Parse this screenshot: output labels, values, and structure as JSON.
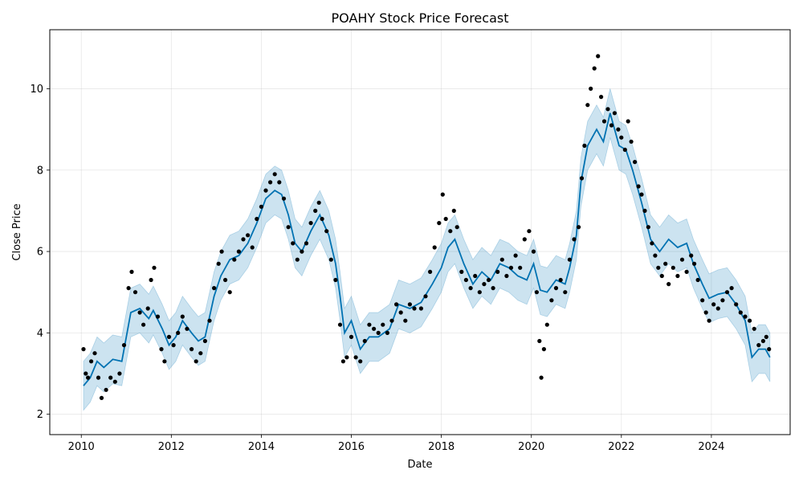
{
  "chart_data": {
    "type": "line",
    "title": "POAHY Stock Price Forecast",
    "xlabel": "Date",
    "ylabel": "Close Price",
    "x_range": [
      2009.3,
      2025.75
    ],
    "ylim": [
      1.5,
      11.45
    ],
    "x_ticks": [
      "2010",
      "2012",
      "2014",
      "2016",
      "2018",
      "2020",
      "2022",
      "2024"
    ],
    "y_ticks": [
      "2",
      "4",
      "6",
      "8",
      "10"
    ],
    "grid": true,
    "colors": {
      "forecast_line": "#0072B2",
      "uncertainty_band": "#0072B2",
      "observed_points": "#000000"
    },
    "series": [
      {
        "kind": "forecast",
        "points": [
          [
            2010.05,
            2.7
          ],
          [
            2010.2,
            2.9
          ],
          [
            2010.35,
            3.3
          ],
          [
            2010.5,
            3.15
          ],
          [
            2010.7,
            3.35
          ],
          [
            2010.9,
            3.3
          ],
          [
            2011.0,
            3.9
          ],
          [
            2011.1,
            4.5
          ],
          [
            2011.3,
            4.6
          ],
          [
            2011.5,
            4.35
          ],
          [
            2011.6,
            4.55
          ],
          [
            2011.8,
            4.1
          ],
          [
            2011.95,
            3.7
          ],
          [
            2012.1,
            3.9
          ],
          [
            2012.25,
            4.3
          ],
          [
            2012.45,
            4.0
          ],
          [
            2012.6,
            3.8
          ],
          [
            2012.75,
            3.9
          ],
          [
            2012.95,
            4.9
          ],
          [
            2013.1,
            5.4
          ],
          [
            2013.3,
            5.8
          ],
          [
            2013.5,
            5.9
          ],
          [
            2013.7,
            6.2
          ],
          [
            2013.9,
            6.7
          ],
          [
            2014.1,
            7.3
          ],
          [
            2014.3,
            7.5
          ],
          [
            2014.45,
            7.4
          ],
          [
            2014.6,
            6.9
          ],
          [
            2014.75,
            6.2
          ],
          [
            2014.9,
            6.0
          ],
          [
            2015.1,
            6.5
          ],
          [
            2015.3,
            6.9
          ],
          [
            2015.5,
            6.4
          ],
          [
            2015.65,
            5.7
          ],
          [
            2015.75,
            4.9
          ],
          [
            2015.85,
            4.0
          ],
          [
            2016.0,
            4.3
          ],
          [
            2016.2,
            3.6
          ],
          [
            2016.4,
            3.9
          ],
          [
            2016.6,
            3.9
          ],
          [
            2016.85,
            4.1
          ],
          [
            2017.05,
            4.7
          ],
          [
            2017.3,
            4.6
          ],
          [
            2017.55,
            4.75
          ],
          [
            2017.8,
            5.2
          ],
          [
            2018.0,
            5.6
          ],
          [
            2018.15,
            6.1
          ],
          [
            2018.3,
            6.3
          ],
          [
            2018.5,
            5.7
          ],
          [
            2018.7,
            5.2
          ],
          [
            2018.9,
            5.5
          ],
          [
            2019.1,
            5.3
          ],
          [
            2019.3,
            5.7
          ],
          [
            2019.5,
            5.6
          ],
          [
            2019.7,
            5.4
          ],
          [
            2019.9,
            5.3
          ],
          [
            2020.05,
            5.7
          ],
          [
            2020.2,
            5.05
          ],
          [
            2020.35,
            5.0
          ],
          [
            2020.55,
            5.3
          ],
          [
            2020.75,
            5.2
          ],
          [
            2020.85,
            5.6
          ],
          [
            2021.0,
            6.4
          ],
          [
            2021.1,
            7.7
          ],
          [
            2021.25,
            8.6
          ],
          [
            2021.45,
            9.0
          ],
          [
            2021.6,
            8.7
          ],
          [
            2021.75,
            9.4
          ],
          [
            2021.95,
            8.6
          ],
          [
            2022.1,
            8.5
          ],
          [
            2022.25,
            8.0
          ],
          [
            2022.45,
            7.2
          ],
          [
            2022.65,
            6.3
          ],
          [
            2022.85,
            6.0
          ],
          [
            2023.05,
            6.3
          ],
          [
            2023.25,
            6.1
          ],
          [
            2023.45,
            6.2
          ],
          [
            2023.6,
            5.7
          ],
          [
            2023.8,
            5.2
          ],
          [
            2023.95,
            4.85
          ],
          [
            2024.15,
            4.95
          ],
          [
            2024.35,
            5.0
          ],
          [
            2024.55,
            4.7
          ],
          [
            2024.75,
            4.3
          ],
          [
            2024.9,
            3.4
          ],
          [
            2025.05,
            3.6
          ],
          [
            2025.2,
            3.6
          ],
          [
            2025.3,
            3.4
          ]
        ],
        "band_half_width": 0.6
      },
      {
        "kind": "observed",
        "points": [
          [
            2010.05,
            3.6
          ],
          [
            2010.1,
            3.0
          ],
          [
            2010.15,
            2.9
          ],
          [
            2010.22,
            3.3
          ],
          [
            2010.3,
            3.5
          ],
          [
            2010.38,
            2.9
          ],
          [
            2010.45,
            2.4
          ],
          [
            2010.55,
            2.6
          ],
          [
            2010.65,
            2.9
          ],
          [
            2010.75,
            2.8
          ],
          [
            2010.85,
            3.0
          ],
          [
            2010.95,
            3.7
          ],
          [
            2011.05,
            5.1
          ],
          [
            2011.12,
            5.5
          ],
          [
            2011.2,
            5.0
          ],
          [
            2011.3,
            4.5
          ],
          [
            2011.38,
            4.2
          ],
          [
            2011.48,
            4.6
          ],
          [
            2011.55,
            5.3
          ],
          [
            2011.62,
            5.6
          ],
          [
            2011.7,
            4.4
          ],
          [
            2011.78,
            3.6
          ],
          [
            2011.85,
            3.3
          ],
          [
            2011.95,
            3.9
          ],
          [
            2012.05,
            3.7
          ],
          [
            2012.15,
            4.0
          ],
          [
            2012.25,
            4.4
          ],
          [
            2012.35,
            4.1
          ],
          [
            2012.45,
            3.6
          ],
          [
            2012.55,
            3.3
          ],
          [
            2012.65,
            3.5
          ],
          [
            2012.75,
            3.8
          ],
          [
            2012.85,
            4.3
          ],
          [
            2012.95,
            5.1
          ],
          [
            2013.05,
            5.7
          ],
          [
            2013.12,
            6.0
          ],
          [
            2013.2,
            5.3
          ],
          [
            2013.3,
            5.0
          ],
          [
            2013.4,
            5.8
          ],
          [
            2013.5,
            6.0
          ],
          [
            2013.6,
            6.3
          ],
          [
            2013.7,
            6.4
          ],
          [
            2013.8,
            6.1
          ],
          [
            2013.9,
            6.8
          ],
          [
            2014.0,
            7.1
          ],
          [
            2014.1,
            7.5
          ],
          [
            2014.2,
            7.7
          ],
          [
            2014.3,
            7.9
          ],
          [
            2014.4,
            7.7
          ],
          [
            2014.5,
            7.3
          ],
          [
            2014.6,
            6.6
          ],
          [
            2014.7,
            6.2
          ],
          [
            2014.8,
            5.8
          ],
          [
            2014.9,
            6.0
          ],
          [
            2015.0,
            6.2
          ],
          [
            2015.1,
            6.7
          ],
          [
            2015.2,
            7.0
          ],
          [
            2015.28,
            7.2
          ],
          [
            2015.35,
            6.8
          ],
          [
            2015.45,
            6.5
          ],
          [
            2015.55,
            5.8
          ],
          [
            2015.65,
            5.3
          ],
          [
            2015.75,
            4.2
          ],
          [
            2015.82,
            3.3
          ],
          [
            2015.9,
            3.4
          ],
          [
            2016.0,
            3.9
          ],
          [
            2016.1,
            3.4
          ],
          [
            2016.2,
            3.3
          ],
          [
            2016.3,
            3.8
          ],
          [
            2016.4,
            4.2
          ],
          [
            2016.5,
            4.1
          ],
          [
            2016.6,
            4.0
          ],
          [
            2016.7,
            4.2
          ],
          [
            2016.8,
            4.0
          ],
          [
            2016.9,
            4.3
          ],
          [
            2017.0,
            4.7
          ],
          [
            2017.1,
            4.5
          ],
          [
            2017.2,
            4.3
          ],
          [
            2017.3,
            4.7
          ],
          [
            2017.4,
            4.6
          ],
          [
            2017.55,
            4.6
          ],
          [
            2017.65,
            4.9
          ],
          [
            2017.75,
            5.5
          ],
          [
            2017.85,
            6.1
          ],
          [
            2017.95,
            6.7
          ],
          [
            2018.03,
            7.4
          ],
          [
            2018.1,
            6.8
          ],
          [
            2018.2,
            6.5
          ],
          [
            2018.28,
            7.0
          ],
          [
            2018.35,
            6.6
          ],
          [
            2018.45,
            5.5
          ],
          [
            2018.55,
            5.3
          ],
          [
            2018.65,
            5.1
          ],
          [
            2018.75,
            5.4
          ],
          [
            2018.85,
            5.0
          ],
          [
            2018.95,
            5.2
          ],
          [
            2019.05,
            5.3
          ],
          [
            2019.15,
            5.1
          ],
          [
            2019.25,
            5.5
          ],
          [
            2019.35,
            5.8
          ],
          [
            2019.45,
            5.4
          ],
          [
            2019.55,
            5.6
          ],
          [
            2019.65,
            5.9
          ],
          [
            2019.75,
            5.6
          ],
          [
            2019.85,
            6.3
          ],
          [
            2019.95,
            6.5
          ],
          [
            2020.05,
            6.0
          ],
          [
            2020.12,
            5.0
          ],
          [
            2020.18,
            3.8
          ],
          [
            2020.22,
            2.9
          ],
          [
            2020.28,
            3.6
          ],
          [
            2020.35,
            4.2
          ],
          [
            2020.45,
            4.8
          ],
          [
            2020.55,
            5.1
          ],
          [
            2020.65,
            5.3
          ],
          [
            2020.75,
            5.0
          ],
          [
            2020.85,
            5.8
          ],
          [
            2020.95,
            6.3
          ],
          [
            2021.05,
            6.6
          ],
          [
            2021.12,
            7.8
          ],
          [
            2021.18,
            8.6
          ],
          [
            2021.25,
            9.6
          ],
          [
            2021.32,
            10.0
          ],
          [
            2021.4,
            10.5
          ],
          [
            2021.48,
            10.8
          ],
          [
            2021.55,
            9.8
          ],
          [
            2021.62,
            9.2
          ],
          [
            2021.7,
            9.5
          ],
          [
            2021.78,
            9.1
          ],
          [
            2021.85,
            9.4
          ],
          [
            2021.93,
            9.0
          ],
          [
            2022.0,
            8.8
          ],
          [
            2022.08,
            8.5
          ],
          [
            2022.15,
            9.2
          ],
          [
            2022.22,
            8.7
          ],
          [
            2022.3,
            8.2
          ],
          [
            2022.38,
            7.6
          ],
          [
            2022.45,
            7.4
          ],
          [
            2022.52,
            7.0
          ],
          [
            2022.6,
            6.6
          ],
          [
            2022.68,
            6.2
          ],
          [
            2022.75,
            5.9
          ],
          [
            2022.82,
            5.6
          ],
          [
            2022.9,
            5.4
          ],
          [
            2022.98,
            5.7
          ],
          [
            2023.05,
            5.2
          ],
          [
            2023.15,
            5.6
          ],
          [
            2023.25,
            5.4
          ],
          [
            2023.35,
            5.8
          ],
          [
            2023.45,
            5.5
          ],
          [
            2023.55,
            5.9
          ],
          [
            2023.62,
            5.7
          ],
          [
            2023.7,
            5.3
          ],
          [
            2023.8,
            4.8
          ],
          [
            2023.88,
            4.5
          ],
          [
            2023.95,
            4.3
          ],
          [
            2024.05,
            4.7
          ],
          [
            2024.15,
            4.6
          ],
          [
            2024.25,
            4.8
          ],
          [
            2024.35,
            5.0
          ],
          [
            2024.45,
            5.1
          ],
          [
            2024.55,
            4.7
          ],
          [
            2024.65,
            4.5
          ],
          [
            2024.75,
            4.4
          ],
          [
            2024.85,
            4.3
          ],
          [
            2024.95,
            4.1
          ],
          [
            2025.05,
            3.7
          ],
          [
            2025.15,
            3.8
          ],
          [
            2025.22,
            3.9
          ],
          [
            2025.28,
            3.6
          ]
        ]
      }
    ]
  }
}
